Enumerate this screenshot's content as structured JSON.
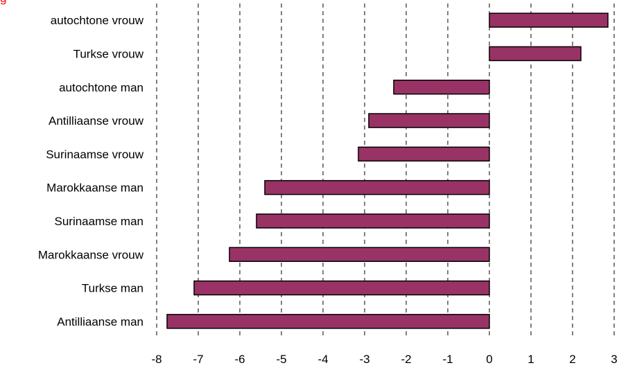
{
  "corner_text": "g",
  "colors": {
    "bar_fill": "#993366",
    "bar_stroke": "#000000",
    "grid": "#000000",
    "corner_text": "#ff0000"
  },
  "chart_data": {
    "type": "bar",
    "orientation": "horizontal",
    "categories": [
      "autochtone vrouw",
      "Turkse vrouw",
      "autochtone man",
      "Antilliaanse vrouw",
      "Surinaamse vrouw",
      "Marokkaanse man",
      "Surinaamse man",
      "Marokkaanse vrouw",
      "Turkse man",
      "Antilliaanse man"
    ],
    "values": [
      2.85,
      2.2,
      -2.3,
      -2.9,
      -3.15,
      -5.4,
      -5.6,
      -6.25,
      -7.1,
      -7.75
    ],
    "xlim": [
      -8,
      3
    ],
    "xticks": [
      "-8",
      "-7",
      "-6",
      "-5",
      "-4",
      "-3",
      "-2",
      "-1",
      "0",
      "1",
      "2",
      "3"
    ],
    "grid": "vertical dashed",
    "legend": "none",
    "title": "",
    "xlabel": "",
    "ylabel": ""
  }
}
